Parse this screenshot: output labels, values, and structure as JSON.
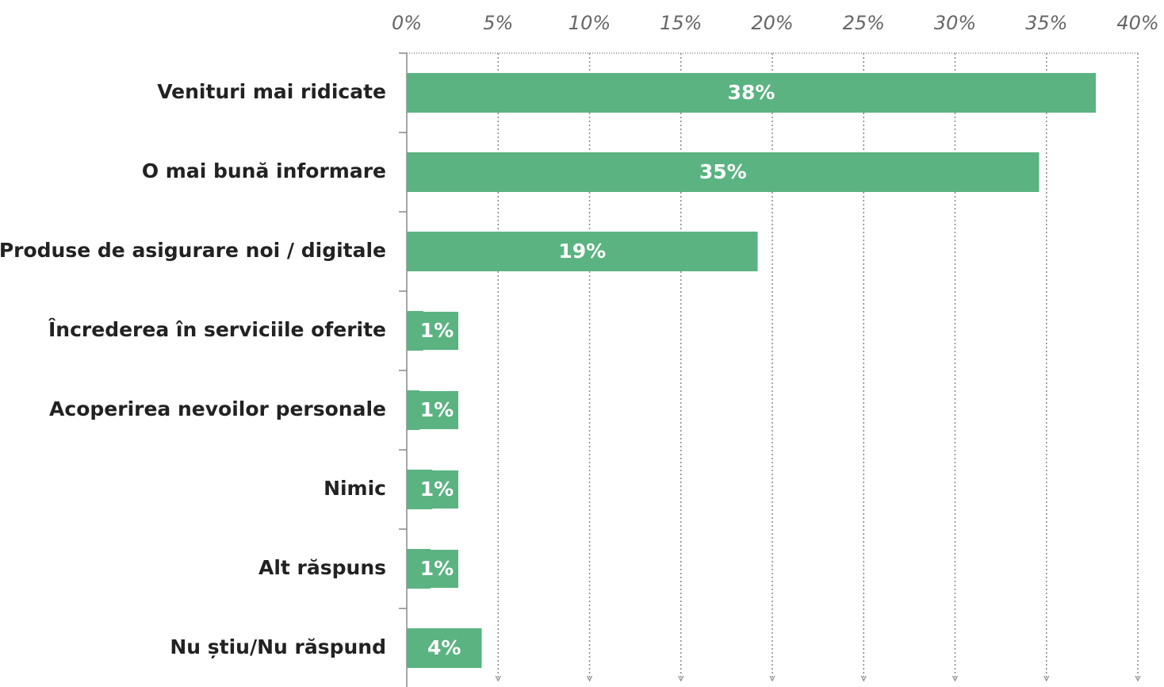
{
  "chart_data": {
    "type": "barh",
    "categories": [
      "Venituri mai ridicate",
      "O mai bună informare",
      "Produse de asigurare noi / digitale",
      "Încrederea în serviciile oferite",
      "Acoperirea nevoilor personale",
      "Nimic",
      "Alt răspuns",
      "Nu știu/Nu răspund"
    ],
    "values": [
      37.7,
      34.6,
      19.2,
      0.9,
      0.7,
      1.4,
      1.3,
      4.1
    ],
    "value_labels": [
      "38%",
      "35%",
      "19%",
      "1%",
      "1%",
      "1%",
      "1%",
      "4%"
    ],
    "color": "#5bb381",
    "xlim": [
      0,
      40
    ],
    "xticks": [
      {
        "value": 0,
        "label": "0%"
      },
      {
        "value": 5,
        "label": "5%"
      },
      {
        "value": 10,
        "label": "10%"
      },
      {
        "value": 15,
        "label": "15%"
      },
      {
        "value": 20,
        "label": "20%"
      },
      {
        "value": 25,
        "label": "25%"
      },
      {
        "value": 30,
        "label": "30%"
      },
      {
        "value": 35,
        "label": "35%"
      },
      {
        "value": 40,
        "label": "40%"
      }
    ],
    "grid": true
  }
}
